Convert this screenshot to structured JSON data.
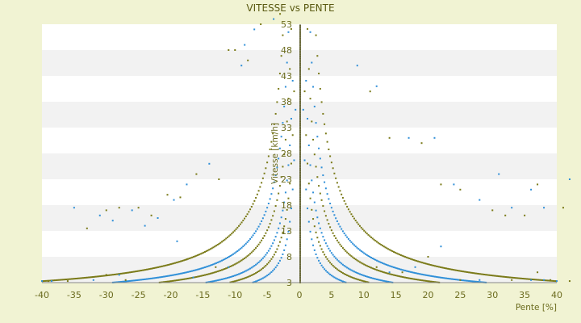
{
  "chart_data": {
    "type": "scatter",
    "title": "VITESSE vs PENTE",
    "xlabel": "Pente [%]",
    "ylabel": "Vitesse [km/h]",
    "xlim": [
      -40,
      40
    ],
    "ylim": [
      3,
      53
    ],
    "x_ticks": [
      -40,
      -35,
      -30,
      -25,
      -20,
      -15,
      -10,
      -5,
      0,
      5,
      10,
      15,
      20,
      25,
      30,
      35,
      40
    ],
    "y_ticks": [
      3,
      8,
      13,
      18,
      23,
      28,
      33,
      38,
      43,
      48,
      53
    ],
    "grid": "horizontal bands",
    "legend": "none",
    "colors": {
      "plot_background": "#ffffff",
      "band_alt": "#f2f2f2",
      "page_background": "#f1f3d3",
      "blue_points": "#2f8fd8",
      "olive_points": "#7a7a18",
      "text": "#6b6b1e"
    },
    "series": [
      {
        "color": "blue",
        "power_factors": [
          70,
          140,
          280
        ]
      },
      {
        "color": "olive",
        "power_factors": [
          105,
          210,
          420
        ]
      }
    ],
    "scattered_points": [
      [
        -40,
        3.3
      ],
      [
        -39,
        3.3
      ],
      [
        -38.5,
        3.3
      ],
      [
        -36,
        3.3
      ],
      [
        -32,
        3.5
      ],
      [
        -30,
        4.5
      ],
      [
        -28,
        4.5
      ],
      [
        -27,
        3.5
      ],
      [
        -35,
        17.5
      ],
      [
        -33,
        13.5
      ],
      [
        -31,
        16
      ],
      [
        -30,
        17
      ],
      [
        -29,
        15
      ],
      [
        -28,
        17.5
      ],
      [
        -26,
        17
      ],
      [
        -25,
        17.5
      ],
      [
        -24,
        14
      ],
      [
        -23,
        16
      ],
      [
        -22,
        15.5
      ],
      [
        -20.5,
        20
      ],
      [
        -19.5,
        19
      ],
      [
        -18.5,
        19.5
      ],
      [
        -17.5,
        22
      ],
      [
        -16,
        24
      ],
      [
        -14,
        26
      ],
      [
        -12.5,
        23
      ],
      [
        -19,
        11
      ],
      [
        -17.5,
        7.5
      ],
      [
        -16.5,
        4
      ],
      [
        -13,
        6
      ],
      [
        -11,
        6
      ],
      [
        -10,
        48
      ],
      [
        -8.5,
        49
      ],
      [
        -8,
        46
      ],
      [
        -9,
        45
      ],
      [
        -11,
        48
      ],
      [
        -7,
        52
      ],
      [
        -6,
        53
      ],
      [
        -4,
        54
      ],
      [
        -3,
        55
      ],
      [
        9,
        45
      ],
      [
        11,
        40
      ],
      [
        12,
        41
      ],
      [
        14,
        31
      ],
      [
        17,
        31
      ],
      [
        19,
        30
      ],
      [
        21,
        31
      ],
      [
        22,
        22
      ],
      [
        24,
        22
      ],
      [
        25,
        21
      ],
      [
        28,
        19
      ],
      [
        30,
        17
      ],
      [
        31,
        24
      ],
      [
        32,
        16
      ],
      [
        33,
        17.5
      ],
      [
        35,
        16
      ],
      [
        36,
        21
      ],
      [
        37,
        22
      ],
      [
        38,
        17.5
      ],
      [
        41,
        17.5
      ],
      [
        42,
        23
      ],
      [
        25,
        3.5
      ],
      [
        28,
        3.5
      ],
      [
        33,
        3.5
      ],
      [
        36,
        3.5
      ],
      [
        37,
        5
      ],
      [
        38,
        3.5
      ],
      [
        39,
        3.5
      ],
      [
        40,
        3.3
      ],
      [
        42,
        3.3
      ],
      [
        22,
        10
      ],
      [
        20,
        8
      ],
      [
        18,
        6
      ],
      [
        16,
        5
      ],
      [
        14,
        5
      ],
      [
        12,
        6
      ]
    ]
  }
}
